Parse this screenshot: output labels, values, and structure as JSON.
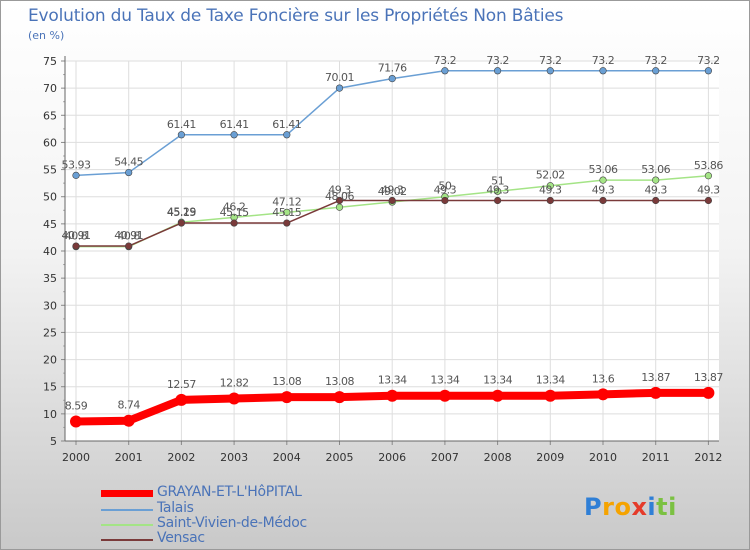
{
  "title": "Evolution du Taux de Taxe Foncière sur les Propriétés Non Bâties",
  "unit_label": "(en %)",
  "logo": {
    "letters": [
      "P",
      "r",
      "o",
      "x",
      "i",
      "t",
      "i"
    ],
    "colors": [
      "#2f7fd6",
      "#f5a300",
      "#f5a300",
      "#e53b2a",
      "#2f7fd6",
      "#7bc142",
      "#7bc142"
    ]
  },
  "chart_data": {
    "type": "line",
    "title": "Evolution du Taux de Taxe Foncière sur les Propriétés Non Bâties",
    "ylabel": "(en %)",
    "ylim": [
      5,
      75
    ],
    "yticks": [
      5,
      10,
      15,
      20,
      25,
      30,
      35,
      40,
      45,
      50,
      55,
      60,
      65,
      70,
      75
    ],
    "categories": [
      "2000",
      "2001",
      "2002",
      "2003",
      "2004",
      "2005",
      "2006",
      "2007",
      "2008",
      "2009",
      "2010",
      "2011",
      "2012"
    ],
    "grid": true,
    "legend_position": "bottom-left",
    "series": [
      {
        "name": "GRAYAN-ET-L'HôPITAL",
        "color": "#ff0000",
        "values": [
          8.59,
          8.74,
          12.57,
          12.82,
          13.08,
          13.08,
          13.34,
          13.34,
          13.34,
          13.34,
          13.6,
          13.87,
          13.87
        ],
        "labels": [
          "8.59",
          "8.74",
          "12.57",
          "12.82",
          "13.08",
          "13.08",
          "13.34",
          "13.34",
          "13.34",
          "13.34",
          "13.6",
          "13.87",
          "13.87"
        ]
      },
      {
        "name": "Talais",
        "color": "#6a9fd4",
        "values": [
          53.93,
          54.45,
          61.41,
          61.41,
          61.41,
          70.01,
          71.76,
          73.2,
          73.2,
          73.2,
          73.2,
          73.2,
          73.2
        ],
        "labels": [
          "53.93",
          "54.45",
          "61.41",
          "61.41",
          "61.41",
          "70.01",
          "71.76",
          "73.2",
          "73.2",
          "73.2",
          "73.2",
          "73.2",
          "73.2"
        ]
      },
      {
        "name": "Saint-Vivien-de-Médoc",
        "color": "#a4e486",
        "values": [
          40.8,
          40.8,
          45.29,
          46.2,
          47.12,
          48.06,
          49.02,
          50,
          51,
          52.02,
          53.06,
          53.06,
          53.86
        ],
        "labels": [
          "40.8",
          "40.8",
          "45.29",
          "46.2",
          "47.12",
          "48.06",
          "49.02",
          "50",
          "51",
          "52.02",
          "53.06",
          "53.06",
          "53.86"
        ]
      },
      {
        "name": "Vensac",
        "color": "#7a3a3a",
        "values": [
          40.91,
          40.91,
          45.15,
          45.15,
          45.15,
          49.3,
          49.3,
          49.3,
          49.3,
          49.3,
          49.3,
          49.3,
          49.3
        ],
        "labels": [
          "40.91",
          "40.91",
          "45.15",
          "45.15",
          "45.15",
          "49.3",
          "49.3",
          "49.3",
          "49.3",
          "49.3",
          "49.3",
          "49.3",
          "49.3"
        ]
      }
    ]
  }
}
